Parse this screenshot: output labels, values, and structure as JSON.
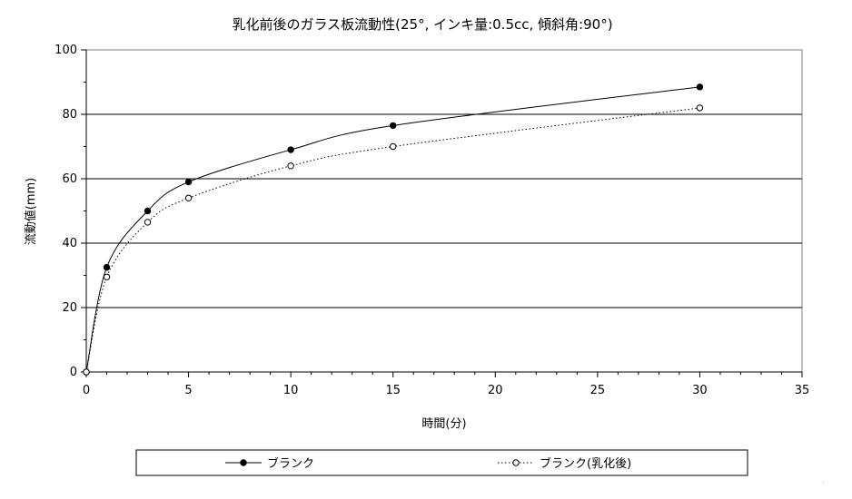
{
  "chart_data": {
    "type": "line",
    "title": "乳化前後のガラス板流動性(25°, インキ量:0.5cc, 傾斜角:90°)",
    "xlabel": "時間(分)",
    "ylabel": "流動値(mm)",
    "xlim": [
      0,
      35
    ],
    "ylim": [
      0,
      100
    ],
    "xticks": [
      0,
      5,
      10,
      15,
      20,
      25,
      30,
      35
    ],
    "yticks": [
      0,
      20,
      40,
      60,
      80,
      100
    ],
    "grid": "horizontal",
    "legend_position": "bottom",
    "series": [
      {
        "name": "ブランク",
        "line_style": "solid",
        "marker": "filled-circle",
        "x": [
          0,
          1,
          3,
          5,
          10,
          15,
          30
        ],
        "y": [
          0,
          32.5,
          50,
          59,
          69,
          76.5,
          88.5
        ]
      },
      {
        "name": "ブランク(乳化後)",
        "line_style": "dotted",
        "marker": "open-circle",
        "x": [
          0,
          1,
          3,
          5,
          10,
          15,
          30
        ],
        "y": [
          0,
          29.5,
          46.5,
          54,
          64,
          70,
          82
        ]
      }
    ]
  }
}
